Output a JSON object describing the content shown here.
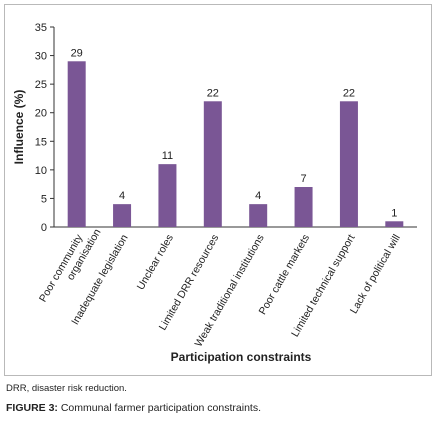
{
  "chart_data": {
    "type": "bar",
    "title": "",
    "ylabel": "Influence (%)",
    "xlabel": "Participation constraints",
    "ylim": [
      0,
      35
    ],
    "yticks": [
      0,
      5,
      10,
      15,
      20,
      25,
      30,
      35
    ],
    "categories": [
      "Poor community organisation",
      "Inadequate legislation",
      "Unclear roles",
      "Limited DRR resources",
      "Weak traditional institutions",
      "Poor cattle markets",
      "Limited technical support",
      "Lack of political will"
    ],
    "category_label_lines": [
      [
        "Poor community",
        "organisation"
      ],
      [
        "Inadequate legislation"
      ],
      [
        "Unclear roles"
      ],
      [
        "Limited DRR resources"
      ],
      [
        "Weak traditional institutions"
      ],
      [
        "Poor cattle markets"
      ],
      [
        "Limited technical support"
      ],
      [
        "Lack of political will"
      ]
    ],
    "values": [
      29,
      4,
      11,
      22,
      4,
      7,
      22,
      1
    ],
    "bar_color": "#7a5695",
    "grid": false,
    "legend": "none"
  },
  "caption": {
    "note": "DRR, disaster risk reduction.",
    "label": "FIGURE 3:",
    "text": " Communal farmer participation constraints."
  }
}
